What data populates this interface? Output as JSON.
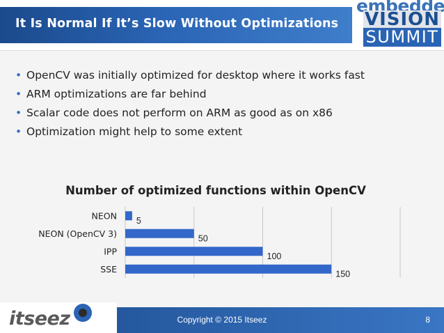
{
  "slide": {
    "title": "It Is Normal If It’s Slow Without Optimizations",
    "logo_line1": "embedded",
    "logo_line2": "VISION",
    "logo_line3": "SUMMIT",
    "bullets": [
      "OpenCV was initially optimized for desktop where it works fast",
      "ARM optimizations are far behind",
      "Scalar code does not perform on ARM as good as on x86",
      "Optimization might help to some extent"
    ],
    "footer_brand": "itseez",
    "copyright": "Copyright © 2015 Itseez",
    "page_number": "8"
  },
  "colors": {
    "accent": "#2a64b4",
    "bar": "#3367c9"
  },
  "chart_data": {
    "type": "bar",
    "orientation": "horizontal",
    "title": "Number of optimized functions within OpenCV",
    "categories": [
      "NEON",
      "NEON (OpenCV 3)",
      "IPP",
      "SSE"
    ],
    "values": [
      5,
      50,
      100,
      150
    ],
    "xlim": [
      0,
      200
    ],
    "grid": true,
    "legend": "none"
  }
}
